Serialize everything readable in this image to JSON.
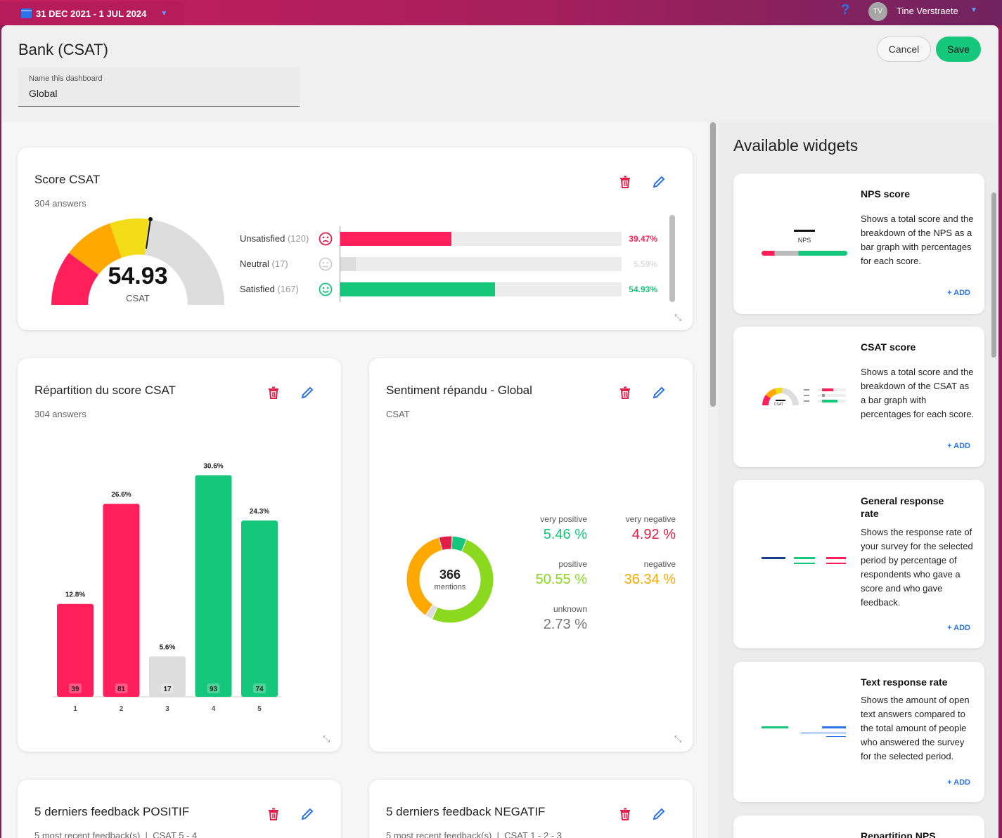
{
  "header": {
    "date_range": "31 DEC 2021 - 1 JUL 2024",
    "help_icon": "?",
    "user_initials": "TV",
    "user_name": "Tine Verstraete"
  },
  "page": {
    "title": "Bank (CSAT)",
    "cancel_label": "Cancel",
    "save_label": "Save",
    "name_field_label": "Name this dashboard",
    "name_field_value": "Global"
  },
  "widgets": {
    "score_csat": {
      "title": "Score CSAT",
      "subtitle": "304 answers",
      "score": "54.93",
      "score_label": "CSAT",
      "rows": [
        {
          "label": "Unsatisfied",
          "count": "(120)",
          "pct": "39.47%",
          "value": 39.47,
          "color": "#ff1f5a"
        },
        {
          "label": "Neutral",
          "count": "(17)",
          "pct": "5.59%",
          "value": 5.59,
          "color": "#dddddd"
        },
        {
          "label": "Satisfied",
          "count": "(167)",
          "pct": "54.93%",
          "value": 54.93,
          "color": "#14c77a"
        }
      ]
    },
    "repartition": {
      "title": "Répartition du score CSAT",
      "subtitle": "304 answers"
    },
    "sentiment": {
      "title": "Sentiment répandu - Global",
      "subtitle": "CSAT",
      "center_value": "366",
      "center_label": "mentions",
      "items": [
        {
          "label": "very positive",
          "value": "5.46 %",
          "color": "#14c77a"
        },
        {
          "label": "very negative",
          "value": "4.92 %",
          "color": "#e01e48"
        },
        {
          "label": "positive",
          "value": "50.55 %",
          "color": "#8ad91e"
        },
        {
          "label": "negative",
          "value": "36.34 %",
          "color": "#ffa800"
        },
        {
          "label": "unknown",
          "value": "2.73 %",
          "color": "#777777"
        }
      ]
    },
    "positif": {
      "title": "5 derniers feedback POSITIF",
      "subtitle": "5 most recent feedback(s)  |  CSAT 5 - 4"
    },
    "negatif": {
      "title": "5 derniers feedback NEGATIF",
      "subtitle": "5 most recent feedback(s)  |  CSAT 1 - 2 - 3"
    }
  },
  "chart_data": [
    {
      "type": "bar",
      "title": "Répartition du score CSAT",
      "categories": [
        "1",
        "2",
        "3",
        "4",
        "5"
      ],
      "values": [
        39,
        81,
        17,
        93,
        74
      ],
      "percent_labels": [
        "12.8%",
        "26.6%",
        "5.6%",
        "30.6%",
        "24.3%"
      ],
      "colors": [
        "#ff1f5a",
        "#ff1f5a",
        "#dddddd",
        "#14c77a",
        "#14c77a"
      ]
    },
    {
      "type": "pie",
      "title": "Sentiment répandu - Global",
      "labels": [
        "very positive",
        "positive",
        "unknown",
        "negative",
        "very negative"
      ],
      "values": [
        5.46,
        50.55,
        2.73,
        36.34,
        4.92
      ],
      "colors": [
        "#14c77a",
        "#8ad91e",
        "#dddddd",
        "#ffa800",
        "#e01e48"
      ]
    }
  ],
  "sidebar": {
    "title": "Available widgets",
    "add_label": "+ ADD",
    "nps_mini_label": "NPS",
    "csat_mini_label": "CSAT",
    "items": [
      {
        "title": "NPS score",
        "desc": "Shows a total score and the breakdown of the NPS as a bar graph with percentages for each score."
      },
      {
        "title": "CSAT score",
        "desc": "Shows a total score and the breakdown of the CSAT as a bar graph with percentages for each score."
      },
      {
        "title": "General response rate",
        "desc": "Shows the response rate of your survey for the selected period by percentage of respondents who gave a score and who gave feedback."
      },
      {
        "title": "Text response rate",
        "desc": "Shows the amount of open text answers compared to the total amount of people who answered the survey for the selected period."
      },
      {
        "title": "Repartition NPS",
        "desc": ""
      }
    ]
  }
}
